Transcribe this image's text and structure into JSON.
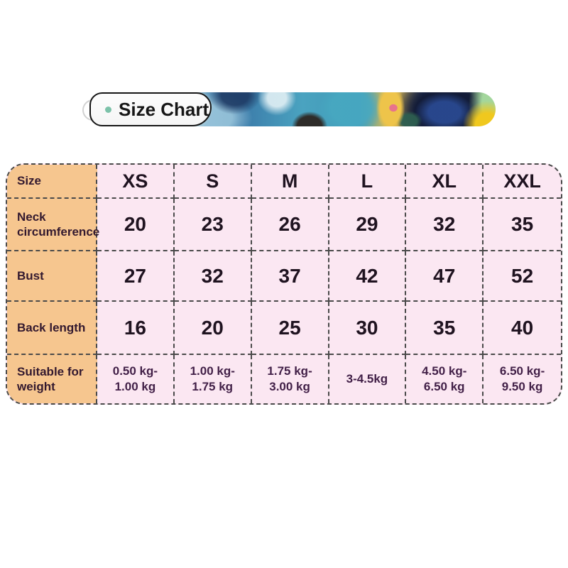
{
  "banner": {
    "title": "Size Chart"
  },
  "table": {
    "corner_label": "Size",
    "sizes": [
      "XS",
      "S",
      "M",
      "L",
      "XL",
      "XXL"
    ],
    "rows": [
      {
        "label": "Neck circumference",
        "values": [
          "20",
          "23",
          "26",
          "29",
          "32",
          "35"
        ]
      },
      {
        "label": "Bust",
        "values": [
          "27",
          "32",
          "37",
          "42",
          "47",
          "52"
        ]
      },
      {
        "label": "Back length",
        "values": [
          "16",
          "20",
          "25",
          "30",
          "35",
          "40"
        ]
      },
      {
        "label": "Suitable for weight",
        "values": [
          "0.50 kg-\n1.00 kg",
          "1.00 kg-\n1.75 kg",
          "1.75 kg-\n3.00 kg",
          "3-4.5kg",
          "4.50 kg-\n6.50 kg",
          "6.50 kg-\n9.50 kg"
        ]
      }
    ]
  },
  "colors": {
    "page-bg": "#ffffff",
    "table-orange": "#f6c68f",
    "table-pink": "#fbe7f2",
    "dash": "#4a4a4a",
    "label-text": "#33192f",
    "value-text": "#1f1320",
    "weight-text": "#411f47",
    "banner-title-text": "#161616",
    "accent-dot": "#7cc2a9"
  }
}
